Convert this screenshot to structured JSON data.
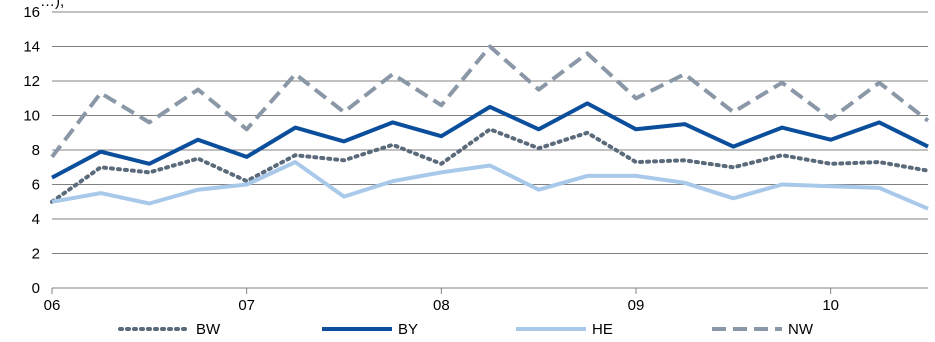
{
  "chart_data": {
    "type": "line",
    "title": "",
    "top_label": "…),",
    "xlabel": "",
    "ylabel": "",
    "ylim": [
      0,
      16
    ],
    "yticks": [
      0,
      2,
      4,
      6,
      8,
      10,
      12,
      14,
      16
    ],
    "x_tick_labels": [
      "06",
      "07",
      "08",
      "09",
      "10"
    ],
    "x_range": [
      2006.0,
      2010.5
    ],
    "x": [
      2006.0,
      2006.25,
      2006.5,
      2006.75,
      2007.0,
      2007.25,
      2007.5,
      2007.75,
      2008.0,
      2008.25,
      2008.5,
      2008.75,
      2009.0,
      2009.25,
      2009.5,
      2009.75,
      2010.0,
      2010.25,
      2010.5
    ],
    "grid": true,
    "legend_position": "bottom",
    "series": [
      {
        "name": "BW",
        "style": "dotted",
        "color": "#5a6a7a",
        "values": [
          5.0,
          7.0,
          6.7,
          7.5,
          6.2,
          7.7,
          7.4,
          8.3,
          7.2,
          9.2,
          8.1,
          9.0,
          7.3,
          7.4,
          7.0,
          7.7,
          7.2,
          7.3,
          6.8
        ]
      },
      {
        "name": "BY",
        "style": "solid",
        "color": "#0b4f9c",
        "values": [
          6.4,
          7.9,
          7.2,
          8.6,
          7.6,
          9.3,
          8.5,
          9.6,
          8.8,
          10.5,
          9.2,
          10.7,
          9.2,
          9.5,
          8.2,
          9.3,
          8.6,
          9.6,
          8.2
        ]
      },
      {
        "name": "HE",
        "style": "solid",
        "color": "#a9c9ea",
        "values": [
          5.0,
          5.5,
          4.9,
          5.7,
          6.0,
          7.3,
          5.3,
          6.2,
          6.7,
          7.1,
          5.7,
          6.5,
          6.5,
          6.1,
          5.2,
          6.0,
          5.9,
          5.8,
          4.6
        ]
      },
      {
        "name": "NW",
        "style": "dashed",
        "color": "#8a97a6",
        "values": [
          7.6,
          11.3,
          9.6,
          11.5,
          9.2,
          12.4,
          10.2,
          12.4,
          10.6,
          14.0,
          11.5,
          13.6,
          11.0,
          12.4,
          10.2,
          11.9,
          9.8,
          11.9,
          9.7
        ]
      }
    ]
  }
}
